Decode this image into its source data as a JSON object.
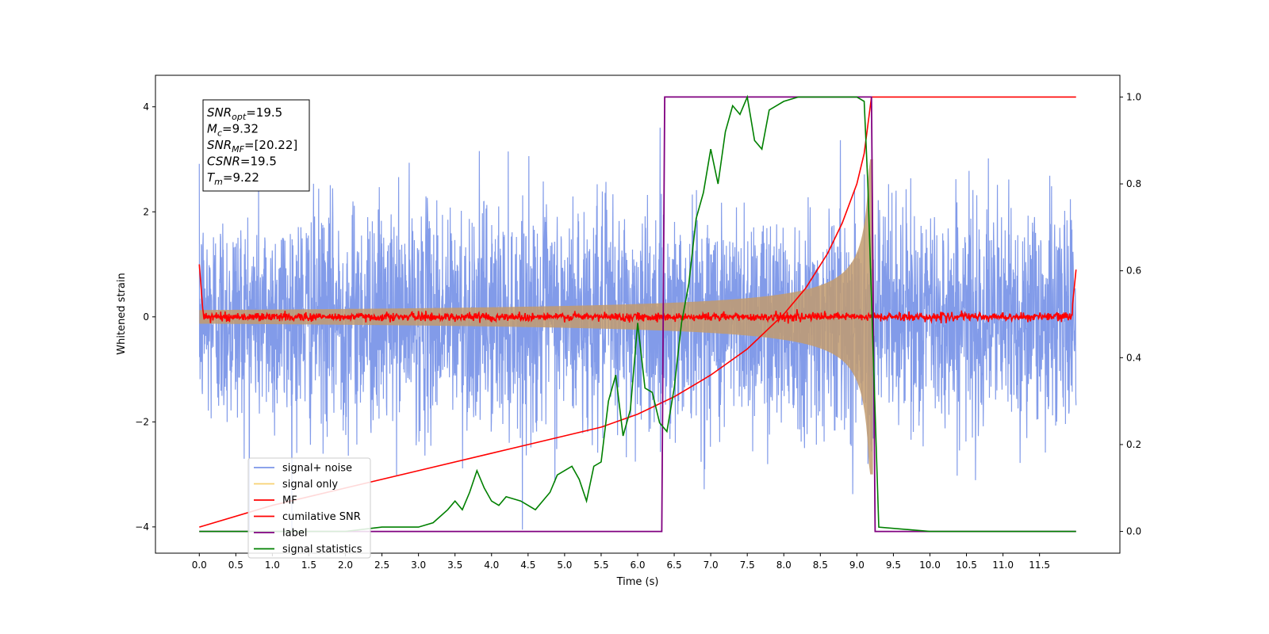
{
  "chart_data": {
    "type": "line",
    "xlabel": "Time (s)",
    "ylabel": "Whitened strain",
    "xlim": [
      -0.6,
      12.6
    ],
    "ylim": [
      -4.5,
      4.6
    ],
    "y2lim": [
      -0.05,
      1.05
    ],
    "x_ticks": [
      "0.0",
      "0.5",
      "1.0",
      "1.5",
      "2.0",
      "2.5",
      "3.0",
      "3.5",
      "4.0",
      "4.5",
      "5.0",
      "5.5",
      "6.0",
      "6.5",
      "7.0",
      "7.5",
      "8.0",
      "8.5",
      "9.0",
      "9.5",
      "10.0",
      "10.5",
      "11.0",
      "11.5"
    ],
    "y_ticks": [
      "−4",
      "−2",
      "0",
      "2",
      "4"
    ],
    "y2_ticks": [
      "0.0",
      "0.2",
      "0.4",
      "0.6",
      "0.8",
      "1.0"
    ],
    "grid": false,
    "legend_position": "lower-left",
    "annotation": {
      "lines": [
        {
          "main": "SNR",
          "sub": "opt",
          "value": "=19.5"
        },
        {
          "main": "M",
          "sub": "c",
          "value": "=9.32"
        },
        {
          "main": "SNR",
          "sub": "MF",
          "value": "=[20.22]"
        },
        {
          "main": "CSNR",
          "sub": "",
          "value": "=19.5"
        },
        {
          "main": "T",
          "sub": "m",
          "value": "=9.22"
        }
      ]
    },
    "series": [
      {
        "name": "signal+ noise",
        "color": "#7b96e8",
        "axis": "left",
        "description_kind": "noise",
        "amplitude_sigma": 1.0,
        "x_range": [
          0,
          12
        ]
      },
      {
        "name": "signal only",
        "color": "#f5c242",
        "axis": "left",
        "description_kind": "chirp",
        "x_range": [
          0,
          9.22
        ]
      },
      {
        "name": "MF",
        "color": "#ff0000",
        "axis": "left",
        "description_kind": "mf",
        "x_range": [
          0,
          12
        ]
      },
      {
        "name": "cumilative SNR",
        "color": "#ff0000",
        "axis": "right",
        "x": [
          0.0,
          1.0,
          2.0,
          3.0,
          4.0,
          5.0,
          5.5,
          6.0,
          6.5,
          7.0,
          7.5,
          8.0,
          8.3,
          8.6,
          8.8,
          9.0,
          9.1,
          9.2,
          12.0
        ],
        "y": [
          0.01,
          0.06,
          0.1,
          0.14,
          0.18,
          0.22,
          0.24,
          0.27,
          0.31,
          0.36,
          0.42,
          0.5,
          0.56,
          0.64,
          0.71,
          0.8,
          0.87,
          1.0,
          1.0
        ]
      },
      {
        "name": "label",
        "color": "#800080",
        "axis": "right",
        "x": [
          0.0,
          6.33,
          6.37,
          9.2,
          9.25,
          12.0
        ],
        "y": [
          0.0,
          0.0,
          1.0,
          1.0,
          0.0,
          0.0
        ]
      },
      {
        "name": "signal statistics",
        "color": "#008000",
        "axis": "right",
        "x": [
          0.0,
          2.0,
          2.5,
          3.0,
          3.2,
          3.4,
          3.5,
          3.6,
          3.7,
          3.8,
          3.9,
          4.0,
          4.1,
          4.2,
          4.4,
          4.6,
          4.8,
          4.9,
          5.0,
          5.1,
          5.2,
          5.3,
          5.4,
          5.5,
          5.6,
          5.7,
          5.8,
          5.9,
          6.0,
          6.1,
          6.2,
          6.3,
          6.4,
          6.5,
          6.6,
          6.7,
          6.8,
          6.9,
          7.0,
          7.1,
          7.2,
          7.3,
          7.4,
          7.5,
          7.6,
          7.7,
          7.8,
          8.0,
          8.2,
          8.5,
          9.0,
          9.1,
          9.15,
          9.3,
          10.0,
          12.0
        ],
        "y": [
          0.0,
          0.0,
          0.01,
          0.01,
          0.02,
          0.05,
          0.07,
          0.05,
          0.09,
          0.14,
          0.1,
          0.07,
          0.06,
          0.08,
          0.07,
          0.05,
          0.09,
          0.13,
          0.14,
          0.15,
          0.12,
          0.07,
          0.15,
          0.16,
          0.3,
          0.36,
          0.22,
          0.28,
          0.48,
          0.33,
          0.32,
          0.25,
          0.23,
          0.33,
          0.48,
          0.57,
          0.72,
          0.78,
          0.88,
          0.8,
          0.92,
          0.98,
          0.96,
          1.0,
          0.9,
          0.88,
          0.97,
          0.99,
          1.0,
          1.0,
          1.0,
          0.99,
          0.8,
          0.01,
          0.0,
          0.0
        ]
      }
    ]
  }
}
